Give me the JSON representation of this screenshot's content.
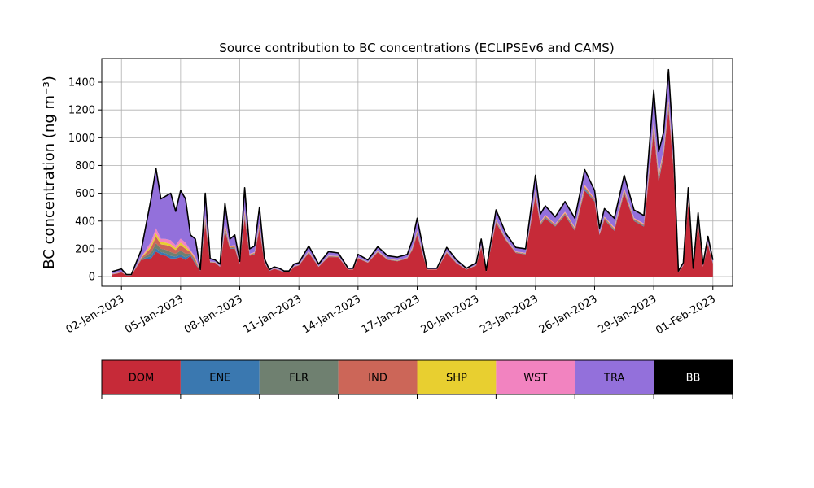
{
  "chart_data": {
    "type": "area",
    "title": "Source contribution to BC concentrations (ECLIPSEv6 and CAMS)",
    "ylabel": "BC concentration (ng m⁻³)",
    "xlabel": "",
    "ylim": [
      -70,
      1570
    ],
    "yticks": [
      0,
      200,
      400,
      600,
      800,
      1000,
      1200,
      1400
    ],
    "xlim": [
      "2023-01-01T00:00",
      "2023-02-02T00:00"
    ],
    "xticks": [
      {
        "date": "2023-01-02",
        "label": "02-Jan-2023"
      },
      {
        "date": "2023-01-05",
        "label": "05-Jan-2023"
      },
      {
        "date": "2023-01-08",
        "label": "08-Jan-2023"
      },
      {
        "date": "2023-01-11",
        "label": "11-Jan-2023"
      },
      {
        "date": "2023-01-14",
        "label": "14-Jan-2023"
      },
      {
        "date": "2023-01-17",
        "label": "17-Jan-2023"
      },
      {
        "date": "2023-01-20",
        "label": "20-Jan-2023"
      },
      {
        "date": "2023-01-23",
        "label": "23-Jan-2023"
      },
      {
        "date": "2023-01-26",
        "label": "26-Jan-2023"
      },
      {
        "date": "2023-01-29",
        "label": "29-Jan-2023"
      },
      {
        "date": "2023-02-01",
        "label": "01-Feb-2023"
      }
    ],
    "grid": true,
    "legend_position": "bottom",
    "series": [
      {
        "name": "DOM",
        "color": "#c62a38"
      },
      {
        "name": "ENE",
        "color": "#3a78b0"
      },
      {
        "name": "FLR",
        "color": "#6f8070"
      },
      {
        "name": "IND",
        "color": "#cc6658"
      },
      {
        "name": "SHP",
        "color": "#e8cf30"
      },
      {
        "name": "WST",
        "color": "#f283c0"
      },
      {
        "name": "TRA",
        "color": "#9370db"
      },
      {
        "name": "BB",
        "color": "#000000"
      }
    ],
    "x": [
      "2023-01-01T12:00",
      "2023-01-01T18:00",
      "2023-01-02T00:00",
      "2023-01-02T06:00",
      "2023-01-02T12:00",
      "2023-01-03T00:00",
      "2023-01-03T12:00",
      "2023-01-03T18:00",
      "2023-01-04T00:00",
      "2023-01-04T06:00",
      "2023-01-04T12:00",
      "2023-01-04T18:00",
      "2023-01-05T00:00",
      "2023-01-05T06:00",
      "2023-01-05T12:00",
      "2023-01-05T18:00",
      "2023-01-06T00:00",
      "2023-01-06T06:00",
      "2023-01-06T12:00",
      "2023-01-06T18:00",
      "2023-01-07T00:00",
      "2023-01-07T06:00",
      "2023-01-07T12:00",
      "2023-01-07T18:00",
      "2023-01-08T00:00",
      "2023-01-08T06:00",
      "2023-01-08T12:00",
      "2023-01-08T18:00",
      "2023-01-09T00:00",
      "2023-01-09T06:00",
      "2023-01-09T12:00",
      "2023-01-09T18:00",
      "2023-01-10T00:00",
      "2023-01-10T06:00",
      "2023-01-10T12:00",
      "2023-01-10T18:00",
      "2023-01-11T00:00",
      "2023-01-11T12:00",
      "2023-01-12T00:00",
      "2023-01-12T12:00",
      "2023-01-13T00:00",
      "2023-01-13T12:00",
      "2023-01-13T18:00",
      "2023-01-14T00:00",
      "2023-01-14T12:00",
      "2023-01-15T00:00",
      "2023-01-15T12:00",
      "2023-01-16T00:00",
      "2023-01-16T12:00",
      "2023-01-16T18:00",
      "2023-01-17T00:00",
      "2023-01-17T12:00",
      "2023-01-17T18:00",
      "2023-01-18T00:00",
      "2023-01-18T12:00",
      "2023-01-19T00:00",
      "2023-01-19T12:00",
      "2023-01-20T00:00",
      "2023-01-20T06:00",
      "2023-01-20T12:00",
      "2023-01-21T00:00",
      "2023-01-21T12:00",
      "2023-01-22T00:00",
      "2023-01-22T12:00",
      "2023-01-23T00:00",
      "2023-01-23T06:00",
      "2023-01-23T12:00",
      "2023-01-24T00:00",
      "2023-01-24T12:00",
      "2023-01-25T00:00",
      "2023-01-25T12:00",
      "2023-01-26T00:00",
      "2023-01-26T06:00",
      "2023-01-26T12:00",
      "2023-01-27T00:00",
      "2023-01-27T12:00",
      "2023-01-28T00:00",
      "2023-01-28T12:00",
      "2023-01-29T00:00",
      "2023-01-29T06:00",
      "2023-01-29T12:00",
      "2023-01-29T18:00",
      "2023-01-30T00:00",
      "2023-01-30T06:00",
      "2023-01-30T12:00",
      "2023-01-30T18:00",
      "2023-01-31T00:00",
      "2023-01-31T06:00",
      "2023-01-31T12:00",
      "2023-01-31T18:00",
      "2023-02-01T00:00"
    ],
    "total_values": [
      35,
      45,
      55,
      15,
      15,
      190,
      560,
      780,
      560,
      580,
      600,
      470,
      620,
      560,
      300,
      270,
      50,
      600,
      130,
      120,
      90,
      530,
      270,
      300,
      110,
      640,
      200,
      220,
      500,
      130,
      50,
      70,
      60,
      40,
      40,
      90,
      100,
      220,
      90,
      180,
      170,
      60,
      60,
      160,
      120,
      215,
      150,
      140,
      160,
      260,
      420,
      60,
      60,
      60,
      210,
      120,
      60,
      100,
      270,
      45,
      480,
      310,
      210,
      200,
      730,
      450,
      510,
      430,
      540,
      420,
      770,
      620,
      350,
      490,
      420,
      730,
      480,
      440,
      1340,
      900,
      1040,
      1490,
      930,
      40,
      100,
      640,
      60,
      460,
      90,
      290,
      120
    ],
    "dom_values": [
      15,
      20,
      30,
      8,
      8,
      120,
      130,
      180,
      160,
      150,
      130,
      130,
      140,
      120,
      150,
      90,
      40,
      380,
      100,
      100,
      70,
      330,
      200,
      200,
      90,
      420,
      150,
      160,
      340,
      100,
      40,
      55,
      45,
      30,
      30,
      70,
      80,
      170,
      70,
      140,
      140,
      50,
      50,
      130,
      100,
      175,
      120,
      110,
      130,
      190,
      300,
      50,
      50,
      50,
      170,
      95,
      50,
      80,
      210,
      35,
      390,
      260,
      170,
      160,
      580,
      370,
      420,
      360,
      440,
      330,
      620,
      540,
      300,
      410,
      330,
      600,
      400,
      360,
      1050,
      680,
      870,
      1200,
      780,
      30,
      80,
      530,
      50,
      380,
      70,
      230,
      90
    ]
  }
}
